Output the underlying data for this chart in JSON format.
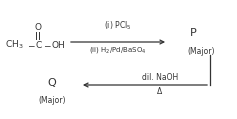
{
  "bg_color": "#ffffff",
  "text_color": "#333333",
  "arrow1_label_top": "(i) PCl$_5$",
  "arrow1_label_bot": "(ii) H$_2$/Pd/BaSO$_4$",
  "product_p": "P",
  "major_p": "(Major)",
  "arrow2_label_top": "dil. NaOH",
  "arrow2_label_bot": "Δ",
  "product_q": "Q",
  "major_q": "(Major)",
  "figsize": [
    2.37,
    1.19
  ],
  "dpi": 100
}
